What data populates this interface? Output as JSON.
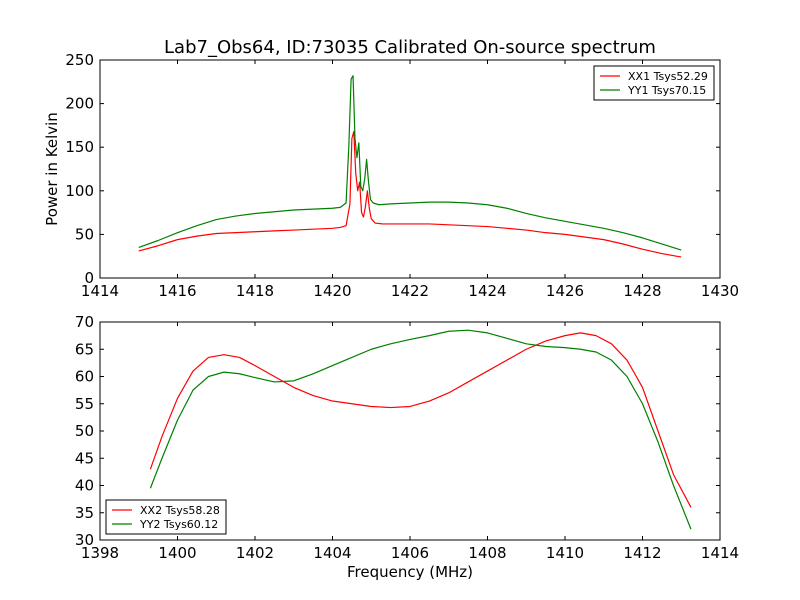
{
  "chart_data": [
    {
      "type": "line",
      "title": "Lab7_Obs64, ID:73035 Calibrated On-source spectrum",
      "xlabel": "",
      "ylabel": "Power in Kelvin",
      "xlim": [
        1414,
        1430
      ],
      "ylim": [
        0,
        250
      ],
      "xticks": [
        "1414",
        "1416",
        "1418",
        "1420",
        "1422",
        "1424",
        "1426",
        "1428",
        "1430"
      ],
      "yticks": [
        "0",
        "50",
        "100",
        "150",
        "200",
        "250"
      ],
      "grid": false,
      "legend_position": "top-right",
      "series": [
        {
          "name": "XX1 Tsys52.29",
          "color": "#ff0000",
          "x": [
            1415.0,
            1415.5,
            1416.0,
            1416.5,
            1417.0,
            1417.5,
            1418.0,
            1418.5,
            1419.0,
            1419.5,
            1420.0,
            1420.2,
            1420.35,
            1420.45,
            1420.5,
            1420.55,
            1420.6,
            1420.65,
            1420.7,
            1420.75,
            1420.8,
            1420.85,
            1420.9,
            1420.95,
            1421.0,
            1421.1,
            1421.3,
            1421.5,
            1422.0,
            1422.5,
            1423.0,
            1423.5,
            1424.0,
            1424.5,
            1425.0,
            1425.5,
            1426.0,
            1426.5,
            1427.0,
            1427.5,
            1428.0,
            1428.5,
            1429.0
          ],
          "y": [
            31,
            37,
            44,
            48,
            51,
            52,
            53,
            54,
            55,
            56,
            57,
            58,
            60,
            85,
            160,
            168,
            120,
            100,
            110,
            75,
            70,
            82,
            100,
            80,
            68,
            63,
            62,
            62,
            62,
            62,
            61,
            60,
            59,
            57,
            55,
            52,
            50,
            47,
            44,
            39,
            33,
            28,
            24
          ]
        },
        {
          "name": "YY1 Tsys70.15",
          "color": "#008000",
          "x": [
            1415.0,
            1415.5,
            1416.0,
            1416.5,
            1417.0,
            1417.5,
            1418.0,
            1418.5,
            1419.0,
            1419.5,
            1420.0,
            1420.2,
            1420.35,
            1420.42,
            1420.48,
            1420.53,
            1420.58,
            1420.63,
            1420.68,
            1420.73,
            1420.78,
            1420.83,
            1420.88,
            1420.93,
            1420.98,
            1421.05,
            1421.2,
            1421.5,
            1422.0,
            1422.5,
            1423.0,
            1423.5,
            1424.0,
            1424.5,
            1425.0,
            1425.5,
            1426.0,
            1426.5,
            1427.0,
            1427.5,
            1428.0,
            1428.5,
            1429.0
          ],
          "y": [
            35,
            43,
            52,
            60,
            67,
            71,
            74,
            76,
            78,
            79,
            80,
            81,
            86,
            150,
            228,
            232,
            160,
            138,
            155,
            105,
            100,
            113,
            136,
            110,
            90,
            86,
            84,
            85,
            86,
            87,
            87,
            86,
            84,
            80,
            74,
            69,
            65,
            61,
            57,
            52,
            46,
            39,
            32
          ]
        }
      ]
    },
    {
      "type": "line",
      "title": "",
      "xlabel": "Frequency (MHz)",
      "ylabel": "",
      "xlim": [
        1398,
        1414
      ],
      "ylim": [
        30,
        70
      ],
      "xticks": [
        "1398",
        "1400",
        "1402",
        "1404",
        "1406",
        "1408",
        "1410",
        "1412",
        "1414"
      ],
      "yticks": [
        "30",
        "35",
        "40",
        "45",
        "50",
        "55",
        "60",
        "65",
        "70"
      ],
      "grid": false,
      "legend_position": "bottom-left",
      "series": [
        {
          "name": "XX2 Tsys58.28",
          "color": "#ff0000",
          "x": [
            1399.3,
            1399.6,
            1400.0,
            1400.4,
            1400.8,
            1401.2,
            1401.6,
            1402.0,
            1402.5,
            1403.0,
            1403.5,
            1404.0,
            1404.5,
            1405.0,
            1405.5,
            1406.0,
            1406.5,
            1407.0,
            1407.5,
            1408.0,
            1408.5,
            1409.0,
            1409.5,
            1410.0,
            1410.4,
            1410.8,
            1411.2,
            1411.6,
            1412.0,
            1412.4,
            1412.8,
            1413.25
          ],
          "y": [
            43,
            49,
            56,
            61,
            63.5,
            64,
            63.5,
            62,
            60,
            58,
            56.5,
            55.5,
            55,
            54.5,
            54.3,
            54.5,
            55.5,
            57,
            59,
            61,
            63,
            65,
            66.5,
            67.5,
            68,
            67.5,
            66,
            63,
            58,
            50,
            42,
            36
          ]
        },
        {
          "name": "YY2 Tsys60.12",
          "color": "#008000",
          "x": [
            1399.3,
            1399.6,
            1400.0,
            1400.4,
            1400.8,
            1401.2,
            1401.6,
            1402.0,
            1402.5,
            1403.0,
            1403.5,
            1404.0,
            1404.5,
            1405.0,
            1405.5,
            1406.0,
            1406.5,
            1407.0,
            1407.5,
            1408.0,
            1408.5,
            1409.0,
            1409.5,
            1410.0,
            1410.4,
            1410.8,
            1411.2,
            1411.6,
            1412.0,
            1412.4,
            1412.8,
            1413.25
          ],
          "y": [
            39.5,
            45,
            52,
            57.5,
            60,
            60.8,
            60.5,
            59.8,
            59,
            59.2,
            60.5,
            62,
            63.5,
            65,
            66,
            66.8,
            67.5,
            68.3,
            68.5,
            68,
            67,
            66,
            65.5,
            65.3,
            65,
            64.5,
            63,
            60,
            55,
            48,
            40,
            32
          ]
        }
      ]
    }
  ]
}
